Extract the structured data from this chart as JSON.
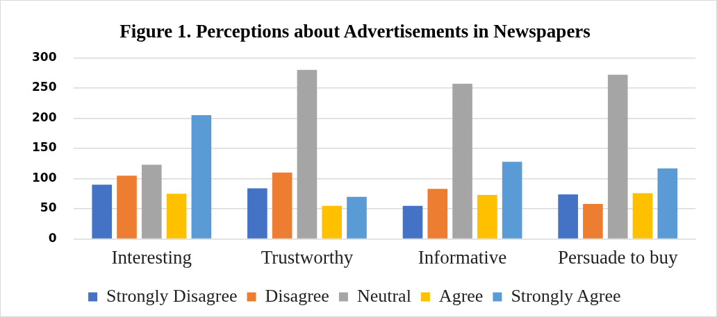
{
  "chart_data": {
    "type": "bar",
    "title": "Figure 1. Perceptions about Advertisements in Newspapers",
    "categories": [
      "Interesting",
      "Trustworthy",
      "Informative",
      "Persuade to buy"
    ],
    "series": [
      {
        "name": "Strongly Disagree",
        "color": "#4472c4",
        "values": [
          90,
          84,
          55,
          74
        ]
      },
      {
        "name": "Disagree",
        "color": "#ed7d31",
        "values": [
          105,
          110,
          83,
          58
        ]
      },
      {
        "name": "Neutral",
        "color": "#a5a5a5",
        "values": [
          123,
          280,
          257,
          272
        ]
      },
      {
        "name": "Agree",
        "color": "#ffc000",
        "values": [
          75,
          55,
          73,
          76
        ]
      },
      {
        "name": "Strongly Agree",
        "color": "#5b9bd5",
        "values": [
          205,
          70,
          128,
          117
        ]
      }
    ],
    "ylim": [
      0,
      300
    ],
    "yticks": [
      0,
      50,
      100,
      150,
      200,
      250,
      300
    ],
    "grid": "y",
    "legend": "bottom"
  }
}
